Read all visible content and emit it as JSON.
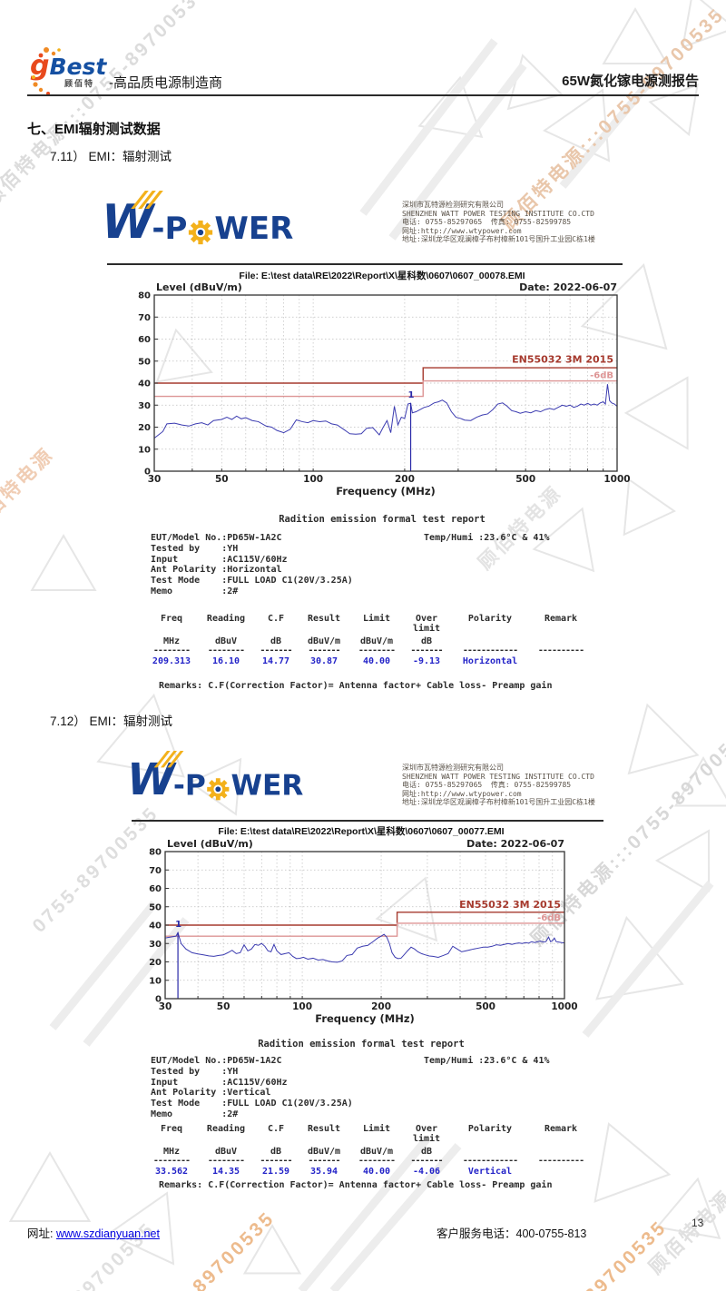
{
  "watermark": {
    "brand_phone": "顾佰特电源:::0755-89700535",
    "brand": "顾佰特电源",
    "phone": "0755-89700535"
  },
  "header": {
    "logo_g": "g",
    "logo_best": "Best",
    "logo_sub": "顾佰特",
    "tagline": "-高品质电源制造商",
    "title": "65W氮化镓电源测报告"
  },
  "section": {
    "heading": "七、EMI辐射测试数据",
    "sub1": "7.11） EMI：辐射测试",
    "sub2": "7.12） EMI：辐射测试"
  },
  "lab": {
    "logo_w": "W",
    "logo_p": "-P",
    "logo_wer": "WER",
    "lines": [
      "深圳市瓦特源检测研究有限公司",
      "SHENZHEN WATT POWER TESTING INSTITUTE CO.CTD",
      "电话: 0755-85297065  传真: 0755-82599785",
      "网址:http://www.wtypower.com",
      "地址:深圳龙华区观澜樟子布村樟新101号国升工业园C栋1楼"
    ]
  },
  "reports": [
    {
      "file_line": "File: E:\\test data\\RE\\2022\\Report\\X\\星科数\\0607\\0607_00078.EMI",
      "title": "Radition emission formal test report",
      "info_lines": [
        "EUT/Model No.:PD65W-1A2C",
        "Tested by    :YH",
        "Input        :AC115V/60Hz",
        "Ant Polarity :Horizontal",
        "Test Mode    :FULL LOAD C1(20V/3.25A)",
        "Memo         :2#"
      ],
      "temp_humi": "Temp/Humi :23.6°C & 41%",
      "table": {
        "headers": [
          "Freq",
          "Reading",
          "C.F",
          "Result",
          "Limit",
          "Over\nlimit",
          "Polarity",
          "Remark"
        ],
        "units": [
          "MHz",
          "dBuV",
          "dB",
          "dBuV/m",
          "dBuV/m",
          "dB",
          "",
          ""
        ],
        "rows": [
          [
            "209.313",
            "16.10",
            "14.77",
            "30.87",
            "40.00",
            "-9.13",
            "Horizontal",
            ""
          ]
        ]
      },
      "remarks": "Remarks: C.F(Correction Factor)= Antenna factor+ Cable loss- Preamp gain"
    },
    {
      "file_line": "File: E:\\test data\\RE\\2022\\Report\\X\\星科数\\0607\\0607_00077.EMI",
      "title": "Radition emission formal test report",
      "info_lines": [
        "EUT/Model No.:PD65W-1A2C",
        "Tested by    :YH",
        "Input        :AC115V/60Hz",
        "Ant Polarity :Vertical",
        "Test Mode    :FULL LOAD C1(20V/3.25A)",
        "Memo         :2#"
      ],
      "temp_humi": "Temp/Humi :23.6°C & 41%",
      "table": {
        "headers": [
          "Freq",
          "Reading",
          "C.F",
          "Result",
          "Limit",
          "Over\nlimit",
          "Polarity",
          "Remark"
        ],
        "units": [
          "MHz",
          "dBuV",
          "dB",
          "dBuV/m",
          "dBuV/m",
          "dB",
          "",
          ""
        ],
        "rows": [
          [
            "33.562",
            "14.35",
            "21.59",
            "35.94",
            "40.00",
            "-4.06",
            "Vertical",
            ""
          ]
        ]
      },
      "remarks": "Remarks: C.F(Correction Factor)= Antenna factor+ Cable loss- Preamp gain"
    }
  ],
  "chart_data": [
    {
      "type": "line",
      "title": "",
      "date_label": "Date: 2022-06-07",
      "ylabel": "Level (dBuV/m)",
      "xlabel": "Frequency (MHz)",
      "xscale": "log",
      "xlim": [
        30,
        1000
      ],
      "ylim": [
        0,
        80
      ],
      "xticks": [
        30,
        50,
        100,
        200,
        500,
        1000
      ],
      "yticks": [
        0,
        10,
        20,
        30,
        40,
        50,
        60,
        70,
        80
      ],
      "grid": true,
      "limit_lines": [
        {
          "name": "EN55032 3M 2015",
          "color": "#a63a2e",
          "points": [
            [
              30,
              40
            ],
            [
              230,
              40
            ],
            [
              230,
              47
            ],
            [
              1000,
              47
            ]
          ]
        },
        {
          "name": "-6dB",
          "color": "#dd9595",
          "points": [
            [
              30,
              34
            ],
            [
              230,
              34
            ],
            [
              230,
              41
            ],
            [
              1000,
              41
            ]
          ]
        }
      ],
      "marker": {
        "label": "1",
        "freq": 209.313,
        "value": 30.87
      },
      "series": [
        {
          "name": "measurement",
          "color": "#3b3bb0",
          "points": [
            [
              30,
              15
            ],
            [
              32,
              18
            ],
            [
              33,
              21.5
            ],
            [
              35,
              21.8
            ],
            [
              37,
              21
            ],
            [
              39,
              20.5
            ],
            [
              41,
              21.5
            ],
            [
              43,
              22
            ],
            [
              45,
              21
            ],
            [
              47,
              23
            ],
            [
              50,
              23.5
            ],
            [
              52,
              24.5
            ],
            [
              54,
              23.5
            ],
            [
              56,
              25
            ],
            [
              58,
              23.8
            ],
            [
              60,
              24.3
            ],
            [
              63,
              23
            ],
            [
              66,
              22.5
            ],
            [
              70,
              20.5
            ],
            [
              73,
              20
            ],
            [
              76,
              18.5
            ],
            [
              80,
              17.5
            ],
            [
              84,
              19
            ],
            [
              88,
              23.3
            ],
            [
              92,
              22.5
            ],
            [
              96,
              22
            ],
            [
              100,
              23
            ],
            [
              105,
              22.5
            ],
            [
              110,
              22.8
            ],
            [
              115,
              21.5
            ],
            [
              120,
              21
            ],
            [
              126,
              19
            ],
            [
              132,
              17
            ],
            [
              138,
              16.8
            ],
            [
              144,
              17
            ],
            [
              150,
              19.5
            ],
            [
              157,
              19.8
            ],
            [
              165,
              16.5
            ],
            [
              170,
              20
            ],
            [
              175,
              23
            ],
            [
              180,
              17.5
            ],
            [
              185,
              29.5
            ],
            [
              190,
              21
            ],
            [
              195,
              24.5
            ],
            [
              200,
              24
            ],
            [
              205,
              30.5
            ],
            [
              209.3,
              30.87
            ],
            [
              212,
              26.5
            ],
            [
              218,
              27
            ],
            [
              225,
              28
            ],
            [
              232,
              29
            ],
            [
              240,
              29.5
            ],
            [
              250,
              31
            ],
            [
              258,
              31.5
            ],
            [
              266,
              32.3
            ],
            [
              275,
              31
            ],
            [
              285,
              27
            ],
            [
              295,
              24.5
            ],
            [
              305,
              24
            ],
            [
              315,
              23.2
            ],
            [
              330,
              23
            ],
            [
              345,
              24.5
            ],
            [
              360,
              25.5
            ],
            [
              375,
              26
            ],
            [
              390,
              28
            ],
            [
              405,
              30.5
            ],
            [
              420,
              31
            ],
            [
              435,
              29.5
            ],
            [
              450,
              27.5
            ],
            [
              465,
              27
            ],
            [
              480,
              26.3
            ],
            [
              500,
              27
            ],
            [
              520,
              26.5
            ],
            [
              540,
              27.5
            ],
            [
              560,
              27
            ],
            [
              580,
              28
            ],
            [
              600,
              28.5
            ],
            [
              620,
              28
            ],
            [
              640,
              29
            ],
            [
              660,
              30
            ],
            [
              680,
              29.5
            ],
            [
              700,
              30
            ],
            [
              720,
              29
            ],
            [
              740,
              29.5
            ],
            [
              760,
              30.5
            ],
            [
              780,
              30
            ],
            [
              800,
              30.8
            ],
            [
              820,
              30
            ],
            [
              840,
              30.5
            ],
            [
              860,
              30
            ],
            [
              880,
              31
            ],
            [
              900,
              31.5
            ],
            [
              915,
              30.5
            ],
            [
              930,
              39.5
            ],
            [
              945,
              32
            ],
            [
              960,
              31
            ],
            [
              980,
              30.5
            ],
            [
              1000,
              29.5
            ]
          ]
        }
      ]
    },
    {
      "type": "line",
      "title": "",
      "date_label": "Date: 2022-06-07",
      "ylabel": "Level (dBuV/m)",
      "xlabel": "Frequency (MHz)",
      "xscale": "log",
      "xlim": [
        30,
        1000
      ],
      "ylim": [
        0,
        80
      ],
      "xticks": [
        30,
        50,
        100,
        200,
        500,
        1000
      ],
      "yticks": [
        0,
        10,
        20,
        30,
        40,
        50,
        60,
        70,
        80
      ],
      "grid": true,
      "limit_lines": [
        {
          "name": "EN55032 3M 2015",
          "color": "#a63a2e",
          "points": [
            [
              30,
              40
            ],
            [
              230,
              40
            ],
            [
              230,
              47
            ],
            [
              1000,
              47
            ]
          ]
        },
        {
          "name": "-6dB",
          "color": "#dd9595",
          "points": [
            [
              30,
              34
            ],
            [
              230,
              34
            ],
            [
              230,
              41
            ],
            [
              1000,
              41
            ]
          ]
        }
      ],
      "marker": {
        "label": "1",
        "freq": 33.562,
        "value": 35.94
      },
      "series": [
        {
          "name": "measurement",
          "color": "#3b3bb0",
          "points": [
            [
              30,
              33
            ],
            [
              31.5,
              33.5
            ],
            [
              33,
              34
            ],
            [
              33.56,
              35.94
            ],
            [
              34.5,
              30
            ],
            [
              36,
              27
            ],
            [
              38,
              25
            ],
            [
              40,
              24.3
            ],
            [
              42,
              23.8
            ],
            [
              44,
              23.3
            ],
            [
              46,
              23
            ],
            [
              48,
              23.5
            ],
            [
              50,
              23.8
            ],
            [
              52,
              25
            ],
            [
              54,
              26.3
            ],
            [
              56,
              24.5
            ],
            [
              58,
              25
            ],
            [
              60,
              29.3
            ],
            [
              62,
              26
            ],
            [
              64,
              27
            ],
            [
              66,
              29.5
            ],
            [
              68,
              29
            ],
            [
              70,
              30
            ],
            [
              72,
              28.5
            ],
            [
              74,
              26
            ],
            [
              76,
              25.5
            ],
            [
              78,
              29.5
            ],
            [
              80,
              26
            ],
            [
              83,
              24
            ],
            [
              86,
              24.5
            ],
            [
              89,
              25
            ],
            [
              92,
              23
            ],
            [
              95,
              21.8
            ],
            [
              98,
              22
            ],
            [
              101,
              22.5
            ],
            [
              105,
              21.5
            ],
            [
              110,
              22
            ],
            [
              115,
              21
            ],
            [
              120,
              21.3
            ],
            [
              125,
              20.5
            ],
            [
              130,
              20
            ],
            [
              136,
              19.8
            ],
            [
              142,
              20.5
            ],
            [
              148,
              23.5
            ],
            [
              155,
              24
            ],
            [
              162,
              27.5
            ],
            [
              170,
              28.5
            ],
            [
              178,
              29
            ],
            [
              186,
              31
            ],
            [
              194,
              33
            ],
            [
              200,
              34
            ],
            [
              205,
              35
            ],
            [
              210,
              33.5
            ],
            [
              215,
              30
            ],
            [
              220,
              25
            ],
            [
              226,
              22.5
            ],
            [
              232,
              21.8
            ],
            [
              238,
              22
            ],
            [
              245,
              24
            ],
            [
              252,
              26
            ],
            [
              260,
              28
            ],
            [
              268,
              27
            ],
            [
              276,
              25.5
            ],
            [
              285,
              24.5
            ],
            [
              295,
              23.8
            ],
            [
              305,
              23.2
            ],
            [
              315,
              23
            ],
            [
              330,
              22.5
            ],
            [
              345,
              23.5
            ],
            [
              360,
              24.5
            ],
            [
              375,
              28.5
            ],
            [
              390,
              27
            ],
            [
              405,
              25.5
            ],
            [
              420,
              26
            ],
            [
              435,
              26.5
            ],
            [
              450,
              27
            ],
            [
              470,
              27.5
            ],
            [
              490,
              28
            ],
            [
              510,
              28
            ],
            [
              530,
              28.5
            ],
            [
              550,
              29.3
            ],
            [
              570,
              29
            ],
            [
              590,
              29.5
            ],
            [
              610,
              30
            ],
            [
              630,
              29.5
            ],
            [
              650,
              30
            ],
            [
              670,
              30.3
            ],
            [
              690,
              30
            ],
            [
              710,
              30.5
            ],
            [
              730,
              30.2
            ],
            [
              750,
              31
            ],
            [
              770,
              30.5
            ],
            [
              790,
              31
            ],
            [
              810,
              31.3
            ],
            [
              830,
              30.8
            ],
            [
              850,
              31
            ],
            [
              870,
              33.5
            ],
            [
              885,
              31
            ],
            [
              900,
              31.5
            ],
            [
              915,
              33
            ],
            [
              930,
              31
            ],
            [
              950,
              30.8
            ],
            [
              975,
              30.5
            ],
            [
              1000,
              30.3
            ]
          ]
        }
      ]
    }
  ],
  "footer": {
    "site_label": "网址:",
    "site_link": "www.szdianyuan.net",
    "service": "客户服务电话：400-0755-813",
    "page": "13"
  }
}
